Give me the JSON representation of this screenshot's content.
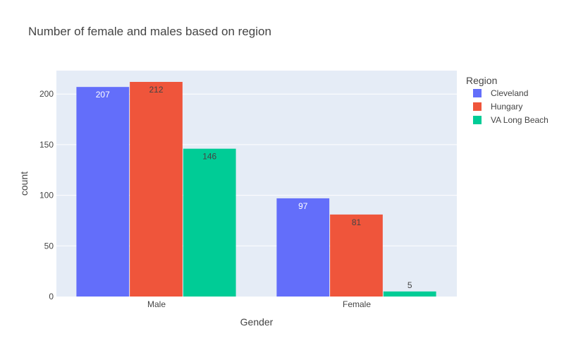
{
  "chart_data": {
    "type": "bar",
    "title": "Number of female and males based on region",
    "xlabel": "Gender",
    "ylabel": "count",
    "categories": [
      "Male",
      "Female"
    ],
    "series": [
      {
        "name": "Cleveland",
        "color": "#636efa",
        "values": [
          207,
          97
        ],
        "label_color": "#ffffff"
      },
      {
        "name": "Hungary",
        "color": "#ef553b",
        "values": [
          212,
          81
        ],
        "label_color": "#444444"
      },
      {
        "name": "VA Long Beach",
        "color": "#00cc96",
        "values": [
          146,
          5
        ],
        "label_color": "#444444"
      }
    ],
    "ylim": [
      0,
      223.16
    ],
    "yticks": [
      0,
      50,
      100,
      150,
      200
    ],
    "grid": true,
    "legend_title": "Region",
    "legend_position": "right",
    "plot_bgcolor": "#e5ecf6",
    "barmode": "group"
  }
}
